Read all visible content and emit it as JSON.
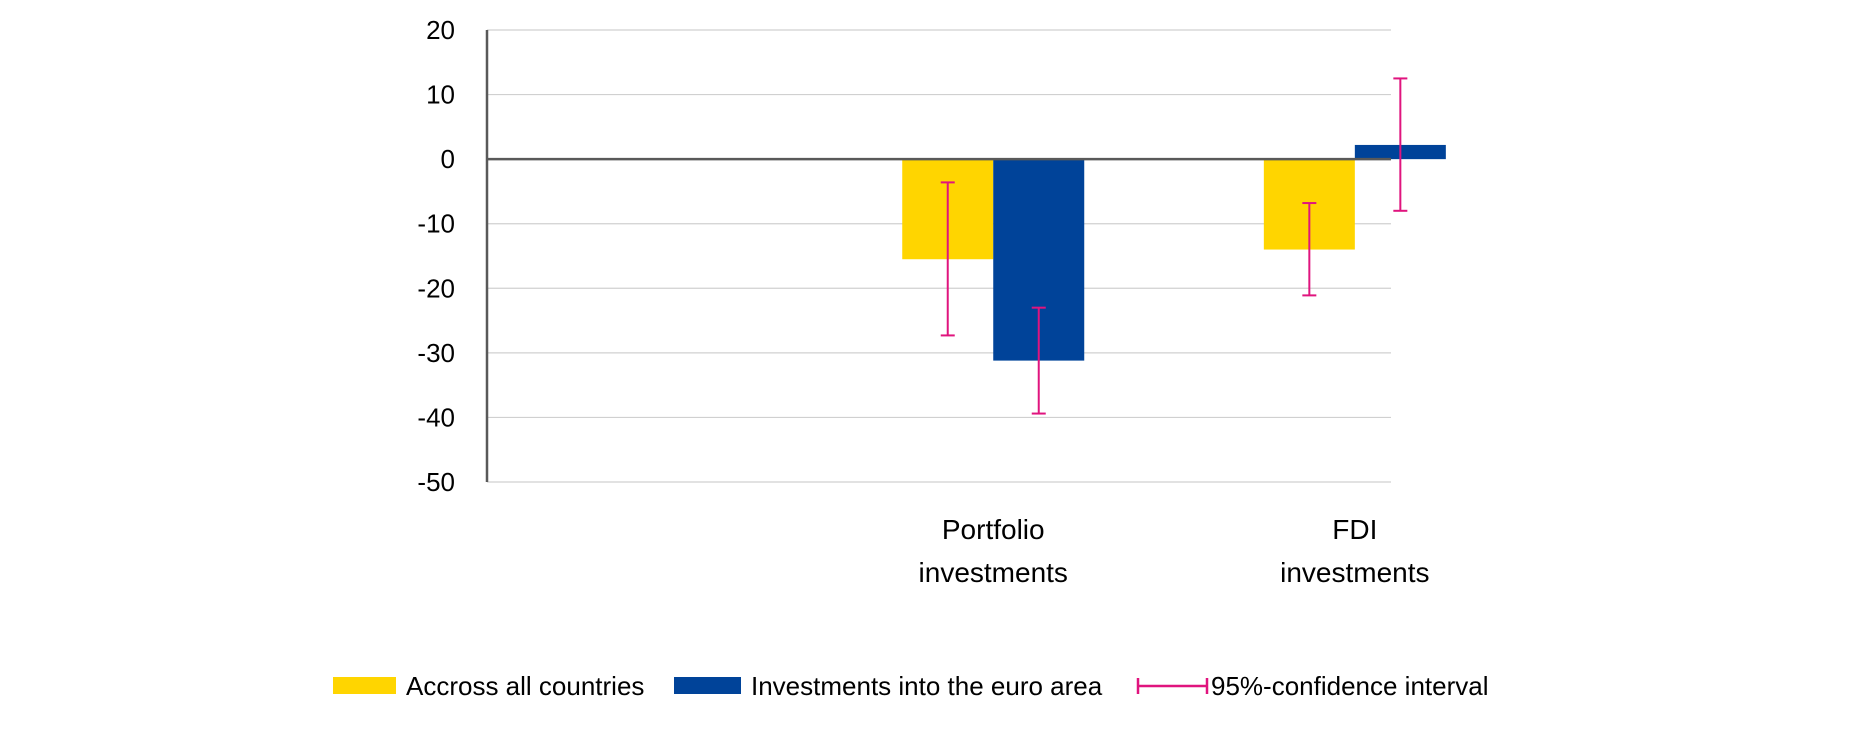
{
  "chart_data": {
    "type": "bar",
    "categories": [
      "Portfolio investments",
      "FDI investments"
    ],
    "category_label_lines": [
      [
        "Portfolio",
        "investments"
      ],
      [
        "FDI",
        "investments"
      ]
    ],
    "series": [
      {
        "name": "Accross all countries",
        "color": "#FFD500",
        "values": [
          -15.5,
          -14.0
        ]
      },
      {
        "name": "Investments into the euro area",
        "color": "#004399",
        "values": [
          -31.2,
          2.2
        ]
      }
    ],
    "error_bars": {
      "name": "95%-confidence interval",
      "color": "#E0147E",
      "intervals": [
        [
          [
            -27.3,
            -3.6
          ],
          [
            -21.1,
            -6.8
          ]
        ],
        [
          [
            -39.4,
            -23.0
          ],
          [
            -8.0,
            12.5
          ]
        ]
      ]
    },
    "ylim": [
      -50,
      20
    ],
    "yticks": [
      20,
      10,
      0,
      -10,
      -20,
      -30,
      -40,
      -50
    ],
    "grid": true,
    "legend_position": "bottom",
    "title": "",
    "xlabel": "",
    "ylabel": ""
  }
}
